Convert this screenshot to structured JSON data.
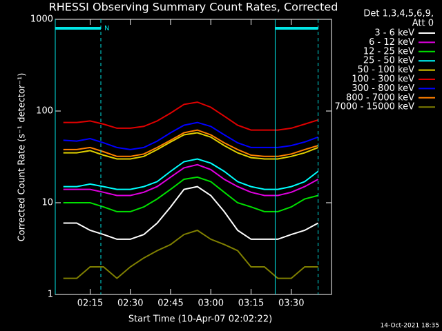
{
  "chart_data": {
    "type": "line",
    "title": "RHESSI Observing Summary Count Rates, Corrected",
    "x_label": "Start Time (10-Apr-07 02:02:22)",
    "y_label": "Corrected Count Rate (s⁻¹ detector⁻¹)",
    "legend_title": [
      "Det 1,3,4,5,6,9,",
      "Att 0"
    ],
    "footer": "14-Oct-2021 18:35",
    "log_y": true,
    "xlim": [
      "02:02",
      "03:45"
    ],
    "xticks": [
      "02:15",
      "02:30",
      "02:45",
      "03:00",
      "03:15",
      "03:30"
    ],
    "ylim": [
      1,
      1000
    ],
    "yticks": [
      1,
      10,
      100,
      1000
    ],
    "night_intervals": [
      {
        "start": "02:02",
        "end": "02:19",
        "label": "N"
      },
      {
        "start": "03:24",
        "end": "03:40"
      }
    ],
    "interval_color": "#00e5e5",
    "x": [
      "02:05",
      "02:10",
      "02:15",
      "02:20",
      "02:25",
      "02:30",
      "02:35",
      "02:40",
      "02:45",
      "02:50",
      "02:55",
      "03:00",
      "03:05",
      "03:10",
      "03:15",
      "03:20",
      "03:25",
      "03:30",
      "03:35",
      "03:40"
    ],
    "series": [
      {
        "name": "3 - 6 keV",
        "color": "#ffffff",
        "values": [
          6,
          6,
          5,
          4.5,
          4,
          4,
          4.5,
          6,
          9,
          14,
          15,
          12,
          8,
          5,
          4,
          4,
          4,
          4.5,
          5,
          6
        ]
      },
      {
        "name": "6 - 12 keV",
        "color": "#e000e0",
        "values": [
          14,
          14,
          14,
          13,
          12,
          12,
          13,
          15,
          19,
          24,
          26,
          23,
          18,
          15,
          13,
          12,
          12,
          13,
          15,
          18
        ]
      },
      {
        "name": "12 - 25 keV",
        "color": "#00e000",
        "values": [
          10,
          10,
          10,
          9,
          8,
          8,
          9,
          11,
          14,
          18,
          19,
          17,
          13,
          10,
          9,
          8,
          8,
          9,
          11,
          12
        ]
      },
      {
        "name": "25 - 50 keV",
        "color": "#00ffff",
        "values": [
          15,
          15,
          16,
          15,
          14,
          14,
          15,
          17,
          22,
          28,
          30,
          27,
          22,
          17,
          15,
          14,
          14,
          15,
          17,
          22
        ]
      },
      {
        "name": "50 - 100 keV",
        "color": "#e0d000",
        "values": [
          35,
          35,
          37,
          33,
          30,
          30,
          32,
          38,
          46,
          55,
          58,
          52,
          42,
          35,
          31,
          30,
          30,
          32,
          35,
          40
        ]
      },
      {
        "name": "100 - 300 keV",
        "color": "#e00000",
        "values": [
          75,
          75,
          78,
          72,
          65,
          65,
          68,
          78,
          95,
          118,
          125,
          110,
          88,
          70,
          62,
          62,
          62,
          65,
          72,
          80
        ]
      },
      {
        "name": "300 - 800 keV",
        "color": "#0000ff",
        "values": [
          48,
          47,
          50,
          45,
          40,
          38,
          40,
          47,
          58,
          70,
          75,
          68,
          55,
          45,
          40,
          40,
          40,
          42,
          46,
          52
        ]
      },
      {
        "name": "800 - 7000 keV",
        "color": "#ff8000",
        "values": [
          38,
          38,
          40,
          36,
          32,
          32,
          34,
          40,
          48,
          58,
          62,
          55,
          45,
          38,
          33,
          32,
          32,
          34,
          38,
          42
        ]
      },
      {
        "name": "7000 - 15000 keV",
        "color": "#808000",
        "values": [
          1.5,
          1.5,
          2,
          2,
          1.5,
          2,
          2.5,
          3,
          3.5,
          4.5,
          5,
          4,
          3.5,
          3,
          2,
          2,
          1.5,
          1.5,
          2,
          2
        ]
      }
    ]
  }
}
